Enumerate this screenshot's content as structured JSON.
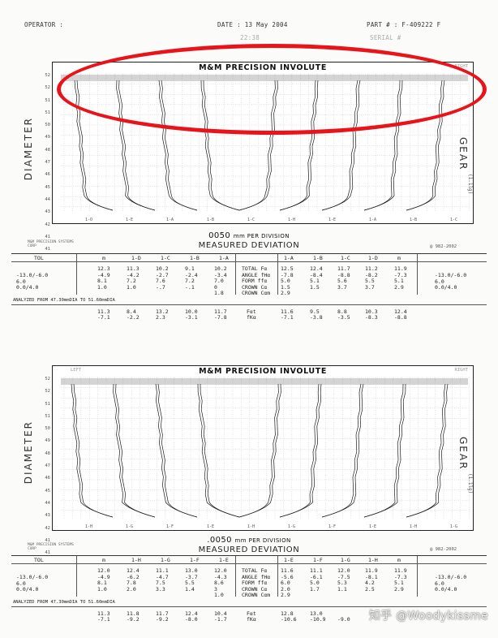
{
  "header": {
    "operator_label": "OPERATOR :",
    "date_label": "DATE : 13 May 2004",
    "part_label": "PART # : F-409222 F",
    "faint_time": "22:38",
    "faint_serial": "SERIAL #"
  },
  "panels": [
    {
      "title": "M&M PRECISION INVOLUTE",
      "corner_left": "",
      "corner_right": "RIGHT",
      "left_label": "DIAMETER",
      "right_label": "GEAR",
      "right_sub": "(1.1lg)",
      "y_labels": [
        "52",
        "52",
        "51",
        "51",
        "50",
        "49",
        "48",
        "47",
        "46",
        "45",
        "44",
        "43",
        "42",
        "41",
        "41"
      ],
      "x_labels": [
        "1-O",
        "1-E",
        "1-A",
        "1-B",
        "1-C",
        "1-H",
        "1-E",
        "1-A",
        "1-B",
        "1-C"
      ],
      "unit_prefix": "0050",
      "unit_text": "mm PER DIVISION",
      "measured": "MEASURED DEVIATION",
      "logo_text": "M&M PRECISION SYSTEMS CORP",
      "code": "@ 982-2002",
      "table": {
        "tol_header": "TOL",
        "tol_values": [
          "-13.0/-6.0",
          "6.0",
          "0.0/4.0"
        ],
        "left_headers": [
          "m",
          "1-D",
          "1-C",
          "1-B",
          "1-A"
        ],
        "left_cols": [
          [
            "12.3",
            "-4.9",
            "8.1",
            "1.0"
          ],
          [
            "11.3",
            "-4.2",
            "7.2",
            "1.0"
          ],
          [
            "10.2",
            "-2.7",
            "7.6",
            "-.7"
          ],
          [
            "9.1",
            "-2.4",
            "7.2",
            "-.1"
          ],
          [
            "10.2",
            "-3.4",
            "7.0",
            "0",
            "1.8"
          ]
        ],
        "params": [
          "TOTAL Fα",
          "ANGLE fHα",
          "FORM ffα",
          "CROWN Cα",
          "CROWN Cαm"
        ],
        "right_headers": [
          "1-A",
          "1-B",
          "1-C",
          "1-D",
          "m"
        ],
        "right_cols": [
          [
            "12.5",
            "-7.8",
            "5.0",
            "1.5",
            "2.9"
          ],
          [
            "12.4",
            "-8.4",
            "5.1",
            "1.5"
          ],
          [
            "11.7",
            "-8.8",
            "5.6",
            "3.7"
          ],
          [
            "11.2",
            "-8.2",
            "5.5",
            "3.7"
          ],
          [
            "11.9",
            "-7.3",
            "5.1",
            "2.9"
          ]
        ],
        "tol_right": [
          "-13.0/-6.0",
          "6.0",
          "0.0/4.0"
        ],
        "analyzed": "ANALYZED FROM 47.30mmDIA TO 51.60mmDIA",
        "fwt_left": [
          [
            "11.3",
            "-7.1"
          ],
          [
            "8.4",
            "-2.2"
          ],
          [
            "13.2",
            "2.3"
          ],
          [
            "10.0",
            "-3.1"
          ],
          [
            "11.7",
            "-7.8"
          ]
        ],
        "fwt_params": [
          "Fαt",
          "fKα"
        ],
        "fwt_right": [
          [
            "11.6",
            "-7.1"
          ],
          [
            "9.5",
            "-3.8"
          ],
          [
            "8.8",
            "-3.5"
          ],
          [
            "10.3",
            "-8.3"
          ],
          [
            "12.4",
            "-8.8"
          ]
        ]
      }
    },
    {
      "title": "M&M PRECISION INVOLUTE",
      "corner_left": "LEFT",
      "corner_right": "RIGHT",
      "left_label": "DIAMETER",
      "right_label": "GEAR",
      "right_sub": "(1.1lg)",
      "y_labels": [
        "52",
        "52",
        "51",
        "51",
        "50",
        "49",
        "48",
        "47",
        "46",
        "45",
        "44",
        "43",
        "42",
        "41",
        "41"
      ],
      "x_labels": [
        "1-H",
        "1-G",
        "1-F",
        "1-E",
        "1-H",
        "1-G",
        "1-F",
        "1-E",
        "1-H",
        "1-G"
      ],
      "unit_prefix": ".0050",
      "unit_text": "mm PER DIVISION",
      "measured": "MEASURED DEVIATION",
      "logo_text": "M&M PRECISION SYSTEMS CORP",
      "code": "@ 982-2002",
      "table": {
        "tol_header": "TOL",
        "tol_values": [
          "-13.0/-6.0",
          "6.0",
          "0.0/4.0"
        ],
        "left_headers": [
          "m",
          "1-H",
          "1-G",
          "1-F",
          "1-E"
        ],
        "left_cols": [
          [
            "12.0",
            "-4.9",
            "8.1",
            "1.0"
          ],
          [
            "12.4",
            "-6.2",
            "7.8",
            "2.0"
          ],
          [
            "11.1",
            "-4.7",
            "7.5",
            "3.3"
          ],
          [
            "13.0",
            "-3.7",
            "5.5",
            "1.4"
          ],
          [
            "12.0",
            "-4.3",
            "8.6",
            "3",
            "1.0"
          ]
        ],
        "params": [
          "TOTAL Fα",
          "ANGLE fHα",
          "FORM ffα",
          "CROWN Cα",
          "CROWN Cαm"
        ],
        "right_headers": [
          "1-E",
          "1-F",
          "1-G",
          "1-H",
          "m"
        ],
        "right_cols": [
          [
            "11.6",
            "-5.6",
            "6.0",
            "2.0",
            "2.9"
          ],
          [
            "11.1",
            "-6.1",
            "5.0",
            "1.7"
          ],
          [
            "12.0",
            "-7.5",
            "5.3",
            "1.1"
          ],
          [
            "11.9",
            "-8.1",
            "4.2",
            "2.5"
          ],
          [
            "11.9",
            "-7.3",
            "5.1",
            "2.9"
          ]
        ],
        "tol_right": [
          "-13.0/-6.0",
          "6.0",
          "0.0/4.0"
        ],
        "analyzed": "ANALYZED FROM 47.30mmDIA TO 51.60mmDIA",
        "fwt_left": [
          [
            "11.3",
            "-7.1"
          ],
          [
            "11.8",
            "-9.2"
          ],
          [
            "11.7",
            "-9.2"
          ],
          [
            "12.4",
            "-8.0"
          ],
          [
            "10.4",
            "-1.7"
          ]
        ],
        "fwt_params": [
          "Fαt",
          "fKα"
        ],
        "fwt_right": [
          [
            "12.8",
            "-10.6"
          ],
          [
            "13.0",
            "-10.9"
          ],
          [
            "",
            "-9.0"
          ],
          [
            "",
            ""
          ],
          [
            "",
            ""
          ]
        ]
      }
    }
  ],
  "highlight_color": "#e8141a",
  "watermark": "知乎 @Woodykissme"
}
